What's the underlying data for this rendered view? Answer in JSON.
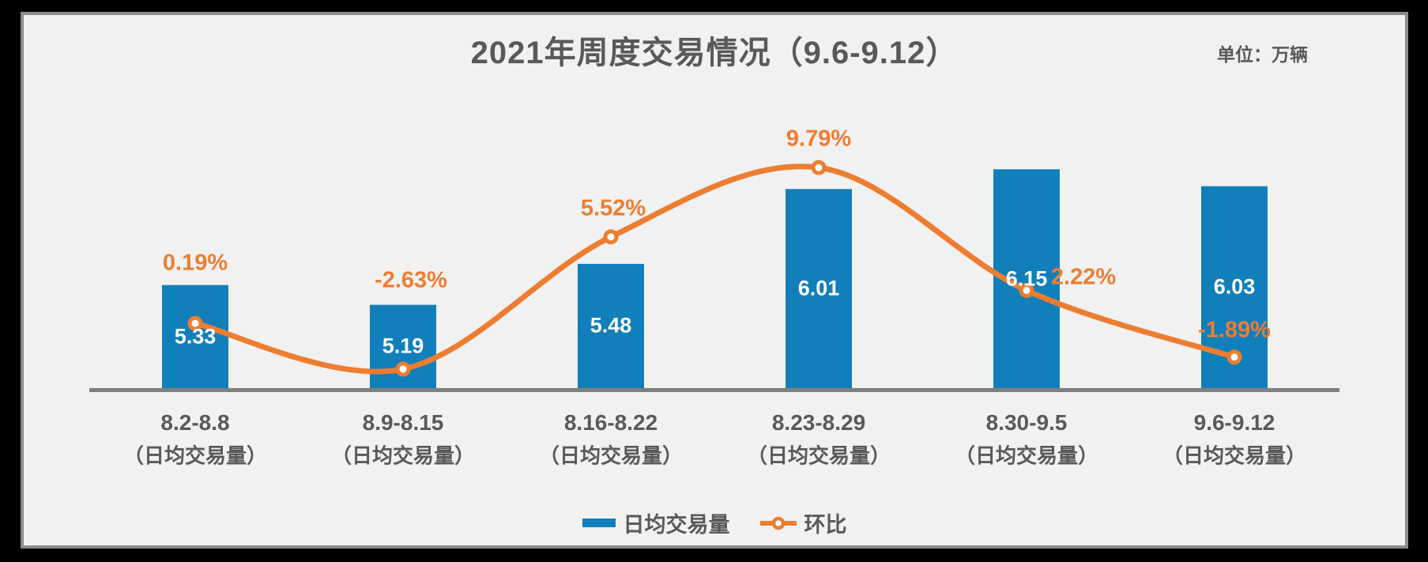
{
  "title": "2021年周度交易情况（9.6-9.12）",
  "unit_label": "单位：万辆",
  "legend": {
    "bar": "日均交易量",
    "line": "环比"
  },
  "colors": {
    "bar": "#117FBA",
    "line": "#ED7D31",
    "value_label": "#FFFFFF",
    "pct_label": "#ED7D31",
    "text": "#595959",
    "axis": "#7F7F7F",
    "panel_bg": "#F1F1F1",
    "panel_border": "#8C8C8C",
    "page_bg": "#000000"
  },
  "chart_data": {
    "type": "bar",
    "categories": [
      "8.2-8.8",
      "8.9-8.15",
      "8.16-8.22",
      "8.23-8.29",
      "8.30-9.5",
      "9.6-9.12"
    ],
    "category_sublabel": "（日均交易量）",
    "title": "2021年周度交易情况（9.6-9.12）",
    "unit": "万辆",
    "legend_position": "bottom",
    "grid": false,
    "series": [
      {
        "name": "日均交易量",
        "type": "bar",
        "values": [
          5.33,
          5.19,
          5.48,
          6.01,
          6.15,
          6.03
        ],
        "value_labels": [
          "5.33",
          "5.19",
          "5.48",
          "6.01",
          "6.15",
          "6.03"
        ]
      },
      {
        "name": "环比",
        "type": "line",
        "values_pct": [
          0.19,
          -2.63,
          5.52,
          9.79,
          2.22,
          -1.89
        ],
        "labels": [
          "0.19%",
          "-2.63%",
          "5.52%",
          "9.79%",
          "2.22%",
          "-1.89%"
        ]
      }
    ]
  }
}
